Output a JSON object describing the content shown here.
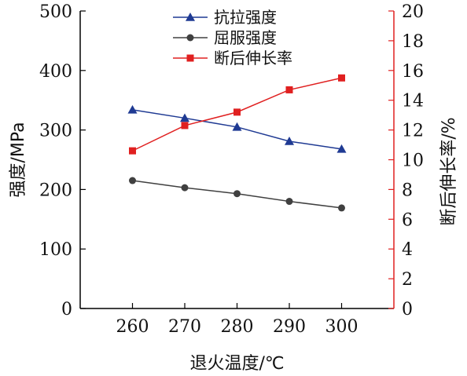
{
  "chart_data": {
    "type": "line",
    "x": [
      260,
      270,
      280,
      290,
      300
    ],
    "xlabel": "退火温度/℃",
    "xlim": [
      250,
      310
    ],
    "xticks": [
      "260",
      "270",
      "280",
      "290",
      "300"
    ],
    "ylabel_left": "强度/MPa",
    "ylim_left": [
      0,
      500
    ],
    "yticks_left": [
      "0",
      "100",
      "200",
      "300",
      "400",
      "500"
    ],
    "ylabel_right": "断后伸长率/%",
    "ylim_right": [
      0,
      20
    ],
    "yticks_right": [
      "0",
      "2",
      "4",
      "6",
      "8",
      "10",
      "12",
      "14",
      "16",
      "18",
      "20"
    ],
    "legend_position": "top-center",
    "grid": false,
    "series": [
      {
        "name": "抗拉强度",
        "axis": "left",
        "marker": "triangle",
        "color": "#1f3a93",
        "values": [
          334,
          320,
          305,
          281,
          268
        ]
      },
      {
        "name": "屈服强度",
        "axis": "left",
        "marker": "circle",
        "color": "#404040",
        "values": [
          215,
          203,
          193,
          180,
          169
        ]
      },
      {
        "name": "断后伸长率",
        "axis": "right",
        "marker": "square",
        "color": "#e02020",
        "values": [
          10.6,
          12.3,
          13.2,
          14.7,
          15.5
        ]
      }
    ]
  }
}
